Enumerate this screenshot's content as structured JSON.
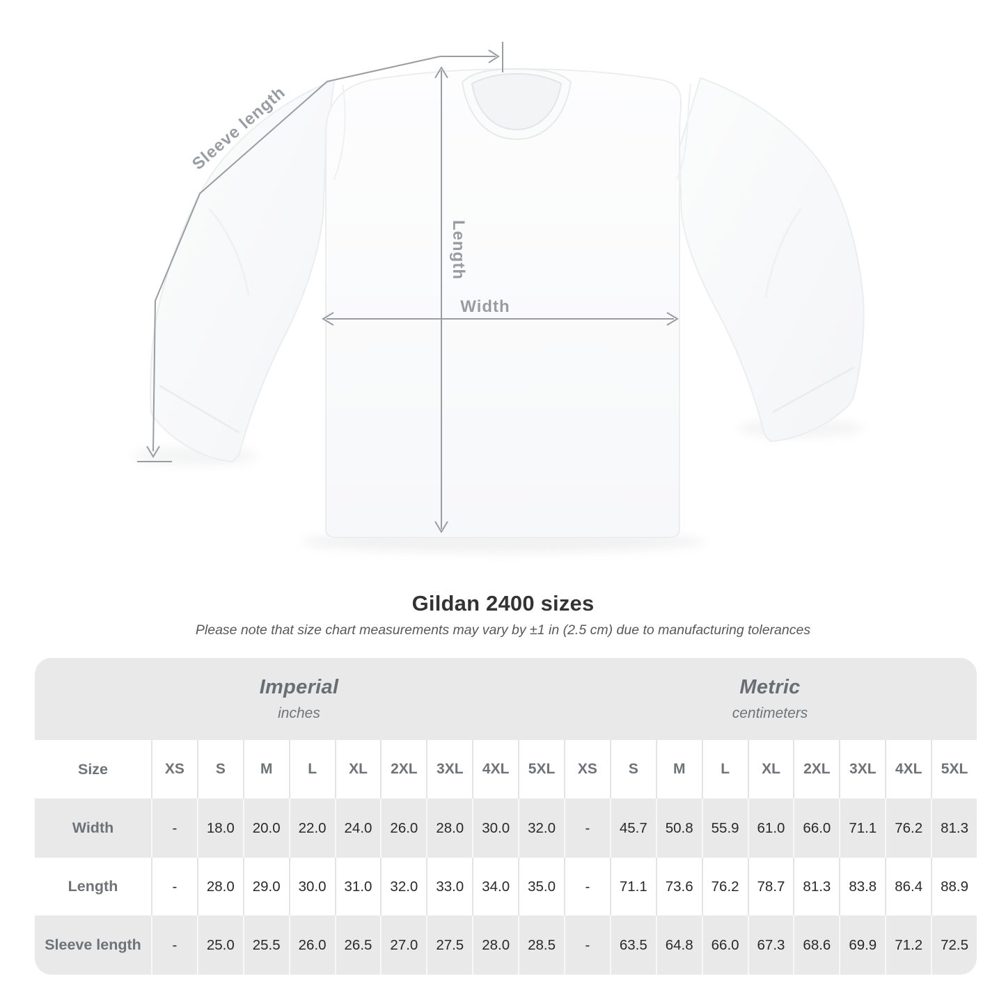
{
  "diagram": {
    "labels": {
      "sleeve": "Sleeve length",
      "length": "Length",
      "width": "Width"
    }
  },
  "title": "Gildan 2400 sizes",
  "subtitle": "Please note that size chart measurements may vary by ±1 in (2.5 cm) due to manufacturing tolerances",
  "table": {
    "sections": [
      {
        "label": "Imperial",
        "unit": "inches"
      },
      {
        "label": "Metric",
        "unit": "centimeters"
      }
    ],
    "size_header": "Size",
    "sizes": [
      "XS",
      "S",
      "M",
      "L",
      "XL",
      "2XL",
      "3XL",
      "4XL",
      "5XL"
    ],
    "rows": [
      {
        "label": "Width",
        "imperial": [
          "-",
          "18.0",
          "20.0",
          "22.0",
          "24.0",
          "26.0",
          "28.0",
          "30.0",
          "32.0"
        ],
        "metric": [
          "-",
          "45.7",
          "50.8",
          "55.9",
          "61.0",
          "66.0",
          "71.1",
          "76.2",
          "81.3"
        ]
      },
      {
        "label": "Length",
        "imperial": [
          "-",
          "28.0",
          "29.0",
          "30.0",
          "31.0",
          "32.0",
          "33.0",
          "34.0",
          "35.0"
        ],
        "metric": [
          "-",
          "71.1",
          "73.6",
          "76.2",
          "78.7",
          "81.3",
          "83.8",
          "86.4",
          "88.9"
        ]
      },
      {
        "label": "Sleeve length",
        "imperial": [
          "-",
          "25.0",
          "25.5",
          "26.0",
          "26.5",
          "27.0",
          "27.5",
          "28.0",
          "28.5"
        ],
        "metric": [
          "-",
          "63.5",
          "64.8",
          "66.0",
          "67.3",
          "68.6",
          "69.9",
          "71.2",
          "72.5"
        ]
      }
    ]
  },
  "colors": {
    "measurement_gray": "#989da3",
    "band_bg": "#e9e9e9",
    "title_color": "#333333",
    "value_color": "#28292b",
    "header_gray": "#6e7378"
  }
}
